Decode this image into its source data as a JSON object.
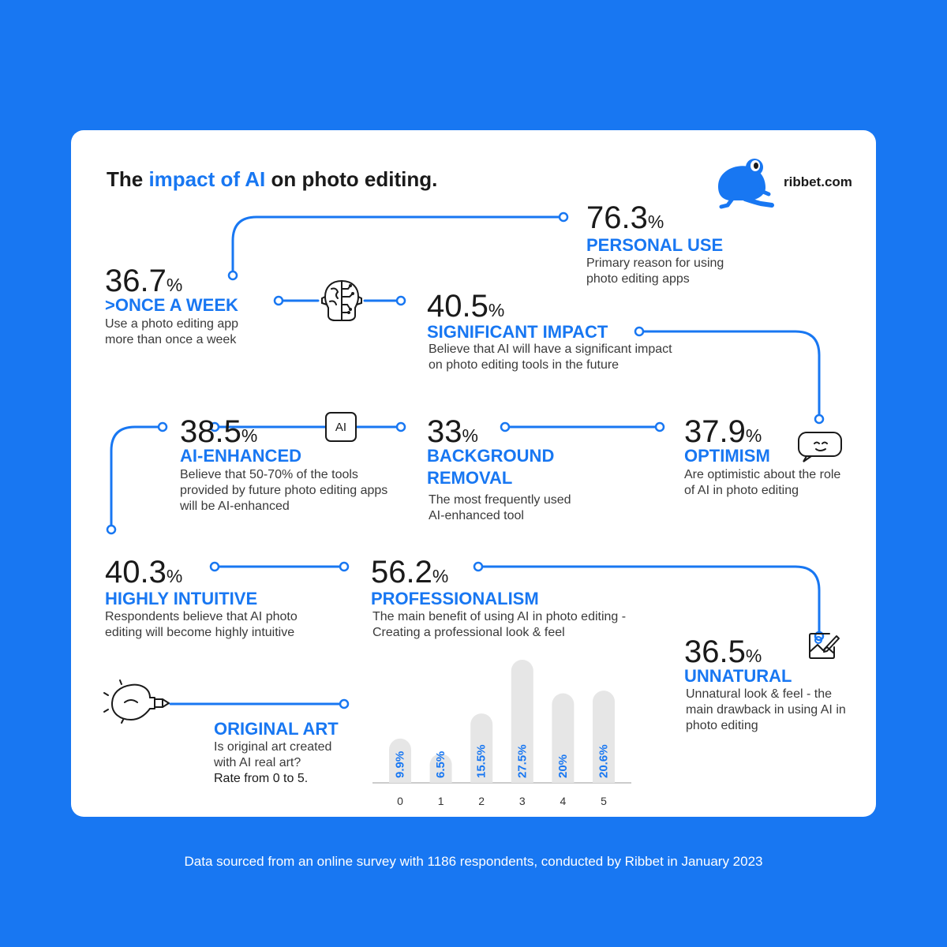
{
  "header": {
    "title_prefix": "The ",
    "title_highlight": "impact of AI",
    "title_suffix": " on photo editing.",
    "brand": "ribbet.com"
  },
  "stats": {
    "personal_use": {
      "value": "76.3",
      "unit": "%",
      "label": "PERSONAL USE",
      "desc": "Primary reason for using photo editing apps"
    },
    "once_a_week": {
      "value": "36.7",
      "unit": "%",
      "label": ">ONCE A WEEK",
      "desc": "Use a photo editing app more than once a week"
    },
    "significant_impact": {
      "value": "40.5",
      "unit": "%",
      "label": "SIGNIFICANT IMPACT",
      "desc": "Believe that AI will have a significant impact on photo editing tools in the future"
    },
    "ai_enhanced": {
      "value": "38.5",
      "unit": "%",
      "label": "AI-ENHANCED",
      "desc": "Believe that 50-70% of the tools provided by future photo editing apps will be AI-enhanced"
    },
    "background_removal": {
      "value": "33",
      "unit": "%",
      "label_line1": "BACKGROUND",
      "label_line2": "REMOVAL",
      "desc": "The most frequently used AI-enhanced tool"
    },
    "optimism": {
      "value": "37.9",
      "unit": "%",
      "label": "OPTIMISM",
      "desc": "Are optimistic about the role of AI in photo editing"
    },
    "highly_intuitive": {
      "value": "40.3",
      "unit": "%",
      "label": "HIGHLY INTUITIVE",
      "desc": "Respondents believe that AI photo editing will become highly intuitive"
    },
    "professionalism": {
      "value": "56.2",
      "unit": "%",
      "label": "PROFESSIONALISM",
      "desc": "The main benefit of using AI in photo editing - Creating a professional look & feel"
    },
    "unnatural": {
      "value": "36.5",
      "unit": "%",
      "label": "UNNATURAL",
      "desc": "Unnatural look & feel - the main drawback in using AI in photo editing"
    }
  },
  "original_art": {
    "label": "ORIGINAL ART",
    "desc": "Is original art created with AI real art?",
    "instruction": "Rate from 0 to 5."
  },
  "ai_badge": "AI",
  "icons": [
    "frog-logo-icon",
    "brain-circuit-icon",
    "ai-chip-icon",
    "robot-chat-icon",
    "image-edit-icon",
    "lightbulb-pen-icon"
  ],
  "colors": {
    "accent": "#1877f2",
    "background": "#1877f2",
    "card": "#ffffff",
    "bar": "#e6e6e6"
  },
  "chart_data": {
    "type": "bar",
    "categories": [
      "0",
      "1",
      "2",
      "3",
      "4",
      "5"
    ],
    "values": [
      9.9,
      6.5,
      15.5,
      27.5,
      20,
      20.6
    ],
    "value_labels": [
      "9.9%",
      "6.5%",
      "15.5%",
      "27.5%",
      "20%",
      "20.6%"
    ],
    "title": "",
    "xlabel": "",
    "ylabel": "",
    "ylim": [
      0,
      27.5
    ],
    "grid": false
  },
  "footer": "Data sourced from an online survey with 1186 respondents, conducted by Ribbet in January 2023"
}
